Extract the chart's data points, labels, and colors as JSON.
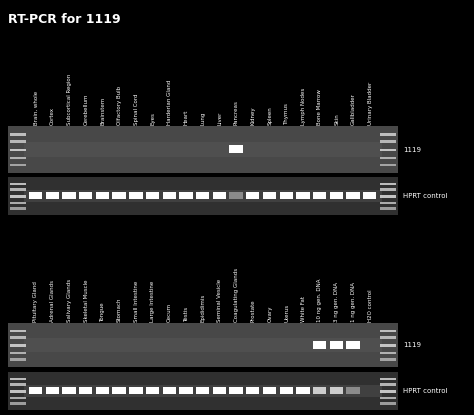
{
  "title": "RT-PCR for 1119",
  "title_color": "white",
  "bg_color": "black",
  "title_fontsize": 9,
  "title_fontweight": "bold",
  "panel1_labels": [
    "Brain, whole",
    "Cortex",
    "Subcortical Region",
    "Cerebellum",
    "Brainstem",
    "Olfactory Bulb",
    "Spinal Cord",
    "Eyes",
    "Harderian Gland",
    "Heart",
    "Lung",
    "Liver",
    "Pancreas",
    "Kidney",
    "Spleen",
    "Thymus",
    "Lymph Nodes",
    "Bone Marrow",
    "Skin",
    "Gallbladder",
    "Urinary Bladder"
  ],
  "panel2_labels": [
    "Pituitary Gland",
    "Adrenal Glands",
    "Salivary Glands",
    "Skeletal Muscle",
    "Tongue",
    "Stomach",
    "Small Intestine",
    "Large Intestine",
    "Cecum",
    "Testis",
    "Epididimis",
    "Seminal Vesicle",
    "Coagulating Glands",
    "Prostate",
    "Ovary",
    "Uterus",
    "White Fat",
    "10 ng gen. DNA",
    "3 ng gen. DNA",
    "1 ng gen. DNA",
    "H2O control"
  ],
  "label_fontsize": 4.0,
  "panel1_gel1_label": "1119",
  "panel1_gel2_label": "HPRT control",
  "panel2_gel1_label": "1119",
  "panel2_gel2_label": "HPRT control",
  "side_label_fontsize": 5.0,
  "n_lanes": 21,
  "panel1_1119_bright": [
    12
  ],
  "panel1_hprt_bright": [
    0,
    1,
    2,
    3,
    4,
    5,
    6,
    7,
    8,
    9,
    10,
    11,
    13,
    14,
    15,
    16,
    17,
    18,
    19,
    20
  ],
  "panel1_hprt_dim": [
    12
  ],
  "panel2_1119_bright": [
    17,
    18,
    19
  ],
  "panel2_hprt_bright": [
    0,
    1,
    2,
    3,
    4,
    5,
    6,
    7,
    8,
    9,
    10,
    11,
    12,
    13,
    14,
    15,
    16
  ],
  "panel2_hprt_medium": [
    17,
    18
  ],
  "panel2_hprt_dim": [
    19
  ]
}
